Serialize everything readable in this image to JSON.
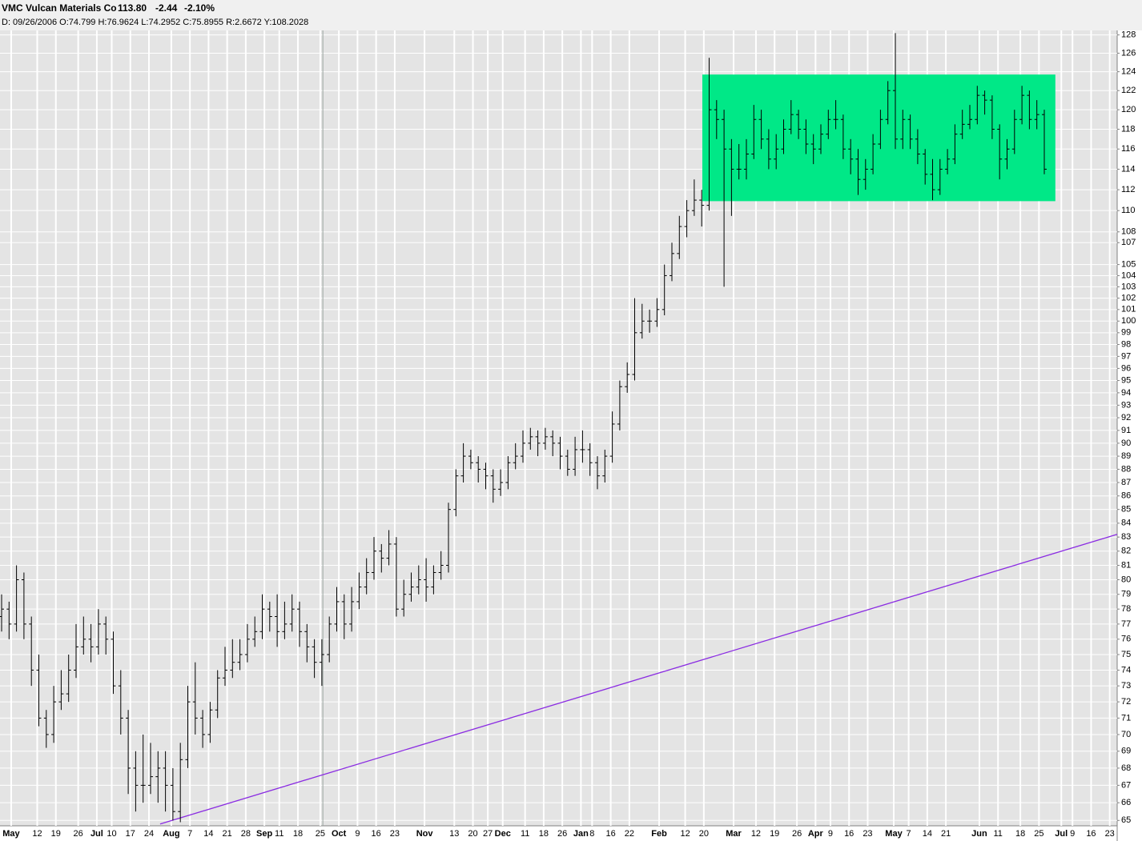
{
  "chart_data": {
    "type": "ohlc",
    "title": "VMC Vulcan Materials Co",
    "quote": {
      "last": "113.80",
      "change": "-2.44",
      "change_pct": "-2.10%",
      "change_color": "#ff0000"
    },
    "subtitle": "D: 09/26/2006 O:74.799 H:76.9624 L:74.2952 C:75.8955 R:2.6672 Y:108.2028",
    "color": "#000000",
    "log_scale": true,
    "grid": true,
    "xlim": [
      0,
      300
    ],
    "ylim": [
      64.7,
      128.5
    ],
    "xticks": [
      {
        "value": 3,
        "label": "May"
      },
      {
        "value": 10,
        "label": "12"
      },
      {
        "value": 15,
        "label": "19"
      },
      {
        "value": 21,
        "label": "26"
      },
      {
        "value": 26,
        "label": "Jul"
      },
      {
        "value": 30,
        "label": "10"
      },
      {
        "value": 35,
        "label": "17"
      },
      {
        "value": 40,
        "label": "24"
      },
      {
        "value": 46,
        "label": "Aug"
      },
      {
        "value": 51,
        "label": "7"
      },
      {
        "value": 56,
        "label": "14"
      },
      {
        "value": 61,
        "label": "21"
      },
      {
        "value": 66,
        "label": "28"
      },
      {
        "value": 71,
        "label": "Sep"
      },
      {
        "value": 75,
        "label": "11"
      },
      {
        "value": 80,
        "label": "18"
      },
      {
        "value": 86,
        "label": "25"
      },
      {
        "value": 91,
        "label": "Oct"
      },
      {
        "value": 96,
        "label": "9"
      },
      {
        "value": 101,
        "label": "16"
      },
      {
        "value": 106,
        "label": "23"
      },
      {
        "value": 114,
        "label": "Nov"
      },
      {
        "value": 122,
        "label": "13"
      },
      {
        "value": 127,
        "label": "20"
      },
      {
        "value": 131,
        "label": "27"
      },
      {
        "value": 135,
        "label": "Dec"
      },
      {
        "value": 141,
        "label": "11"
      },
      {
        "value": 146,
        "label": "18"
      },
      {
        "value": 151,
        "label": "26"
      },
      {
        "value": 156,
        "label": "Jan"
      },
      {
        "value": 159,
        "label": "8"
      },
      {
        "value": 164,
        "label": "16"
      },
      {
        "value": 169,
        "label": "22"
      },
      {
        "value": 177,
        "label": "Feb"
      },
      {
        "value": 184,
        "label": "12"
      },
      {
        "value": 189,
        "label": "20"
      },
      {
        "value": 197,
        "label": "Mar"
      },
      {
        "value": 203,
        "label": "12"
      },
      {
        "value": 208,
        "label": "19"
      },
      {
        "value": 214,
        "label": "26"
      },
      {
        "value": 219,
        "label": "Apr"
      },
      {
        "value": 223,
        "label": "9"
      },
      {
        "value": 228,
        "label": "16"
      },
      {
        "value": 233,
        "label": "23"
      },
      {
        "value": 240,
        "label": "May"
      },
      {
        "value": 244,
        "label": "7"
      },
      {
        "value": 249,
        "label": "14"
      },
      {
        "value": 254,
        "label": "21"
      },
      {
        "value": 263,
        "label": "Jun"
      },
      {
        "value": 268,
        "label": "11"
      },
      {
        "value": 274,
        "label": "18"
      },
      {
        "value": 279,
        "label": "25"
      },
      {
        "value": 285,
        "label": "Jul"
      },
      {
        "value": 288,
        "label": "9"
      },
      {
        "value": 293,
        "label": "16"
      },
      {
        "value": 298,
        "label": "23"
      }
    ],
    "yticks": [
      65,
      66,
      67,
      68,
      69,
      70,
      71,
      72,
      73,
      74,
      75,
      76,
      77,
      78,
      79,
      80,
      81,
      82,
      83,
      84,
      85,
      86,
      87,
      88,
      89,
      90,
      91,
      92,
      93,
      94,
      95,
      96,
      97,
      98,
      99,
      100,
      101,
      102,
      103,
      104,
      105,
      107,
      108,
      110,
      112,
      114,
      116,
      118,
      120,
      122,
      124,
      126,
      128
    ],
    "x": [
      0,
      2,
      4,
      6,
      8,
      10,
      12,
      14,
      16,
      18,
      20,
      22,
      24,
      26,
      28,
      30,
      32,
      34,
      36,
      38,
      40,
      42,
      44,
      46,
      48,
      50,
      52,
      54,
      56,
      58,
      60,
      62,
      64,
      66,
      68,
      70,
      72,
      74,
      76,
      78,
      80,
      82,
      84,
      86,
      88,
      90,
      92,
      94,
      96,
      98,
      100,
      102,
      104,
      106,
      108,
      110,
      112,
      114,
      116,
      118,
      120,
      122,
      124,
      126,
      128,
      130,
      132,
      134,
      136,
      138,
      140,
      142,
      144,
      146,
      148,
      150,
      152,
      154,
      156,
      158,
      160,
      162,
      164,
      166,
      168,
      170,
      172,
      174,
      176,
      178,
      180,
      182,
      184,
      186,
      188,
      190,
      192,
      194,
      196,
      198,
      200,
      202,
      204,
      206,
      208,
      210,
      212,
      214,
      216,
      218,
      220,
      222,
      224,
      226,
      228,
      230,
      232,
      234,
      236,
      238,
      240,
      242,
      244,
      246,
      248,
      250,
      252,
      254,
      256,
      258,
      260,
      262,
      264,
      266,
      268,
      270,
      272,
      274,
      276,
      278,
      280
    ],
    "open": [
      77.5,
      78,
      77,
      80,
      77,
      74,
      71,
      70,
      72,
      72.5,
      74,
      75.5,
      76,
      75.5,
      77,
      76,
      73,
      71,
      68,
      67,
      67,
      67.5,
      68,
      67,
      65.5,
      68.5,
      72,
      71,
      70,
      71.5,
      73.5,
      74,
      74.5,
      75,
      76,
      76.5,
      78,
      77.5,
      76.5,
      77,
      78,
      76.5,
      75.5,
      74.5,
      75,
      77,
      78.5,
      77,
      78.5,
      79.5,
      80.5,
      82,
      81.5,
      82.5,
      78,
      79,
      79.5,
      80,
      79.5,
      80.5,
      81,
      85,
      87.5,
      89,
      88.5,
      88,
      87.5,
      86.5,
      87,
      88.5,
      89,
      90,
      90.5,
      90,
      90.5,
      90,
      89,
      88,
      89.5,
      89.5,
      88.5,
      87.5,
      89,
      91.5,
      94.5,
      95.5,
      99,
      100,
      100,
      101,
      104,
      106,
      108.5,
      110,
      111,
      110.5,
      120,
      119,
      116,
      114,
      114,
      115.5,
      119,
      117,
      115,
      116,
      118,
      119.5,
      118,
      116.5,
      116,
      117.5,
      119,
      119,
      116,
      115,
      113,
      114,
      116.5,
      119,
      122,
      117,
      119,
      117,
      115.5,
      113.5,
      112,
      114,
      115,
      117.5,
      118.5,
      119,
      121.5,
      121,
      118,
      115,
      116,
      119,
      121.5,
      119,
      119.5
    ],
    "high": [
      79,
      78.5,
      81,
      80.5,
      77.5,
      75,
      71.5,
      73,
      74,
      75,
      77,
      77.5,
      77,
      78,
      77.5,
      76.5,
      74,
      71.5,
      69,
      70,
      69.5,
      69,
      69,
      68,
      69.5,
      73,
      74.5,
      71.5,
      72,
      74,
      75.5,
      76,
      76,
      77,
      77.5,
      79,
      78.5,
      79,
      78.5,
      79,
      78.5,
      77,
      76,
      76,
      77.5,
      79.5,
      79,
      79.5,
      80.5,
      81.5,
      83,
      82.5,
      83.5,
      83,
      80,
      80.5,
      81,
      81.5,
      81,
      82,
      85.5,
      88,
      90,
      89.5,
      89,
      88.5,
      88,
      88,
      89,
      90,
      91,
      91.2,
      91,
      91.2,
      91,
      90.5,
      89.5,
      90.5,
      91,
      90,
      89,
      89.5,
      92.5,
      95,
      96.5,
      102,
      101.5,
      101,
      102,
      105,
      107,
      109.5,
      111,
      113,
      112,
      125.5,
      121,
      120,
      117,
      116.5,
      117,
      120.5,
      120,
      118,
      117.5,
      119,
      121,
      120,
      119,
      117.5,
      118.5,
      120,
      121,
      119.5,
      117,
      116,
      115,
      117.5,
      120,
      123,
      128.2,
      120,
      119.5,
      118,
      116,
      115,
      115,
      116,
      118.5,
      120,
      120.5,
      122.5,
      122,
      121.5,
      118.5,
      117,
      120,
      122.5,
      122,
      121,
      120
    ],
    "low": [
      76.5,
      76,
      76.5,
      76,
      73,
      70.5,
      69.2,
      69.5,
      71.5,
      72,
      73.5,
      75,
      74.5,
      75,
      75,
      72.5,
      70,
      66.5,
      65.5,
      66,
      66.5,
      66,
      65.5,
      65,
      64.9,
      68,
      70,
      69.2,
      69.5,
      71,
      73,
      73.5,
      74,
      74.5,
      75.5,
      76,
      76.5,
      75.5,
      76,
      76.5,
      75.5,
      74.5,
      73.5,
      73,
      74.5,
      76.5,
      76,
      76.5,
      78,
      79,
      80,
      80.5,
      81,
      77.5,
      77.5,
      78.5,
      79,
      78.5,
      79,
      80,
      80.5,
      84.5,
      87,
      88,
      87,
      86.5,
      85.5,
      86,
      86.5,
      88,
      88.5,
      89.5,
      89,
      89.5,
      89,
      88,
      87.5,
      87.5,
      88.5,
      87.5,
      86.5,
      87,
      88.5,
      91,
      94,
      95,
      98.5,
      99,
      99.5,
      100.5,
      103.5,
      105.5,
      107.5,
      109.5,
      108.5,
      110,
      117,
      103,
      109.5,
      113,
      113,
      115,
      116,
      114,
      114,
      115.5,
      117.5,
      117,
      115.5,
      114.5,
      115.5,
      117,
      118,
      115,
      113.5,
      111.5,
      112,
      113.5,
      116,
      118.5,
      116,
      116,
      116,
      114.5,
      112.5,
      111,
      111.5,
      113.5,
      114.5,
      117,
      118,
      118.5,
      119.5,
      117,
      113,
      114,
      115.5,
      118.5,
      118,
      118,
      113.5
    ],
    "close": [
      78,
      77,
      80,
      77,
      74,
      71,
      70,
      72,
      72.5,
      74,
      75.5,
      76,
      75.5,
      77,
      76,
      73,
      71,
      68,
      67,
      67,
      67.5,
      68,
      67,
      65.5,
      68.5,
      72,
      71,
      70,
      71.5,
      73.5,
      74,
      74.5,
      75,
      76,
      76.5,
      78,
      77.5,
      76.5,
      77,
      78,
      76.5,
      75.5,
      74.5,
      75,
      77,
      78.5,
      77,
      78.5,
      79.5,
      80.5,
      82,
      81.5,
      82.5,
      78,
      79,
      79.5,
      80,
      79.5,
      80.5,
      81,
      85,
      87.5,
      89,
      88.5,
      88,
      87.5,
      86.5,
      87,
      88.5,
      89,
      90,
      90.5,
      90,
      90.5,
      90,
      89,
      88,
      89.5,
      89.5,
      88.5,
      87.5,
      89,
      91.5,
      94.5,
      95.5,
      99,
      100,
      100,
      101,
      104,
      106,
      108.5,
      110,
      111,
      110.5,
      120,
      119,
      116,
      114,
      114,
      115.5,
      119,
      117,
      115,
      116,
      118,
      119.5,
      118,
      116.5,
      116,
      117.5,
      119,
      119,
      116,
      115,
      113,
      114,
      116.5,
      119,
      122,
      117,
      119,
      117,
      115.5,
      113.5,
      112,
      114,
      115,
      117.5,
      118.5,
      119,
      121.5,
      121,
      118,
      115,
      116,
      119,
      121.5,
      119,
      119.5,
      114
    ],
    "box": {
      "x": [
        188.6,
        283.4
      ],
      "y": [
        110.9,
        123.7
      ],
      "color": "#00e887"
    },
    "trendline": {
      "x": [
        43,
        300
      ],
      "y": [
        64.8,
        83.2
      ],
      "color": "#8a2be2"
    },
    "cursor_x": 86.7
  }
}
